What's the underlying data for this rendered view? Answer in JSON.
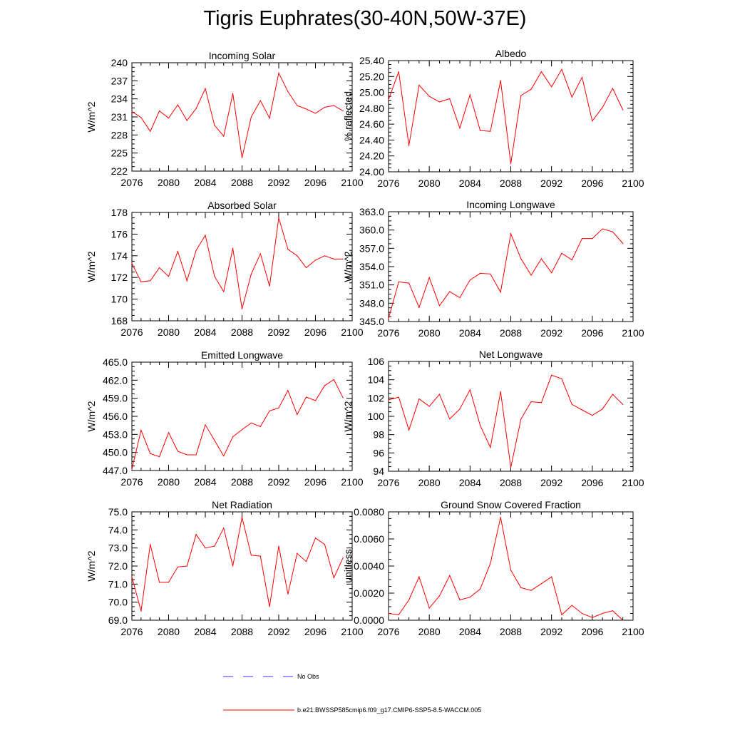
{
  "page_title": "Tigris Euphrates(30-40N,50W-37E)",
  "colors": {
    "model": "#ff0000",
    "obs": "#3333ff",
    "axis": "#000000"
  },
  "legend": {
    "obs_label": "No Obs",
    "model_label": "b.e21.BWSSP585cmip6.f09_g17.CMIP6-SSP5-8.5-WACCM.005"
  },
  "chart_data": [
    {
      "type": "line",
      "title": "Incoming Solar",
      "ylabel": "W/m^2",
      "ylim": [
        222,
        240
      ],
      "yticks": [
        222,
        225,
        228,
        231,
        234,
        237,
        240
      ],
      "ytick_labels": [
        "222",
        "225",
        "228",
        "231",
        "234",
        "237",
        "240"
      ],
      "xlim": [
        2076,
        2100
      ],
      "xticks": [
        2076,
        2080,
        2084,
        2088,
        2092,
        2096,
        2100
      ],
      "x": [
        2076,
        2077,
        2078,
        2079,
        2080,
        2081,
        2082,
        2083,
        2084,
        2085,
        2086,
        2087,
        2088,
        2089,
        2090,
        2091,
        2092,
        2093,
        2094,
        2095,
        2096,
        2097,
        2098,
        2099
      ],
      "series": [
        {
          "values": [
            231.9,
            230.9,
            228.6,
            232.0,
            230.8,
            233.0,
            230.4,
            232.4,
            235.7,
            229.6,
            227.8,
            234.9,
            224.2,
            231.0,
            233.7,
            230.8,
            238.3,
            235.2,
            232.9,
            232.3,
            231.6,
            232.6,
            232.9,
            232.0
          ]
        }
      ]
    },
    {
      "type": "line",
      "title": "Albedo",
      "ylabel": "% reflected",
      "ylim": [
        24.0,
        25.4
      ],
      "yticks": [
        24.0,
        24.2,
        24.4,
        24.6,
        24.8,
        25.0,
        25.2,
        25.4
      ],
      "ytick_labels": [
        "24.00",
        "24.20",
        "24.40",
        "24.60",
        "24.80",
        "25.00",
        "25.20",
        "25.40"
      ],
      "xlim": [
        2076,
        2100
      ],
      "xticks": [
        2076,
        2080,
        2084,
        2088,
        2092,
        2096,
        2100
      ],
      "x": [
        2076,
        2077,
        2078,
        2079,
        2080,
        2081,
        2082,
        2083,
        2084,
        2085,
        2086,
        2087,
        2088,
        2089,
        2090,
        2091,
        2092,
        2093,
        2094,
        2095,
        2096,
        2097,
        2098,
        2099
      ],
      "series": [
        {
          "values": [
            24.91,
            25.26,
            24.33,
            25.09,
            24.95,
            24.88,
            24.92,
            24.55,
            24.97,
            24.52,
            24.51,
            25.15,
            24.1,
            24.96,
            25.04,
            25.26,
            25.07,
            25.29,
            24.94,
            25.19,
            24.64,
            24.81,
            25.05,
            24.78
          ]
        }
      ]
    },
    {
      "type": "line",
      "title": "Absorbed Solar",
      "ylabel": "W/m^2",
      "ylim": [
        168,
        178
      ],
      "yticks": [
        168,
        170,
        172,
        174,
        176,
        178
      ],
      "ytick_labels": [
        "168",
        "170",
        "172",
        "174",
        "176",
        "178"
      ],
      "xlim": [
        2076,
        2100
      ],
      "xticks": [
        2076,
        2080,
        2084,
        2088,
        2092,
        2096,
        2100
      ],
      "x": [
        2076,
        2077,
        2078,
        2079,
        2080,
        2081,
        2082,
        2083,
        2084,
        2085,
        2086,
        2087,
        2088,
        2089,
        2090,
        2091,
        2092,
        2093,
        2094,
        2095,
        2096,
        2097,
        2098,
        2099
      ],
      "series": [
        {
          "values": [
            173.3,
            171.6,
            171.7,
            172.9,
            172.1,
            174.4,
            171.7,
            174.5,
            175.9,
            172.1,
            170.7,
            174.7,
            169.1,
            172.3,
            174.2,
            171.2,
            177.5,
            174.6,
            174.0,
            172.9,
            173.6,
            174.0,
            173.7,
            173.7
          ]
        }
      ]
    },
    {
      "type": "line",
      "title": "Incoming Longwave",
      "ylabel": "W/m^2",
      "ylim": [
        345.0,
        363.0
      ],
      "yticks": [
        345,
        348,
        351,
        354,
        357,
        360,
        363
      ],
      "ytick_labels": [
        "345.0",
        "348.0",
        "351.0",
        "354.0",
        "357.0",
        "360.0",
        "363.0"
      ],
      "xlim": [
        2076,
        2100
      ],
      "xticks": [
        2076,
        2080,
        2084,
        2088,
        2092,
        2096,
        2100
      ],
      "x": [
        2076,
        2077,
        2078,
        2079,
        2080,
        2081,
        2082,
        2083,
        2084,
        2085,
        2086,
        2087,
        2088,
        2089,
        2090,
        2091,
        2092,
        2093,
        2094,
        2095,
        2096,
        2097,
        2098,
        2099
      ],
      "series": [
        {
          "values": [
            345.5,
            351.5,
            351.3,
            347.3,
            352.2,
            347.6,
            349.9,
            348.9,
            351.8,
            352.9,
            352.8,
            349.8,
            359.4,
            355.3,
            352.6,
            355.3,
            353.0,
            356.2,
            355.1,
            358.6,
            358.6,
            360.2,
            359.7,
            357.8
          ]
        }
      ]
    },
    {
      "type": "line",
      "title": "Emitted Longwave",
      "ylabel": "W/m^2",
      "ylim": [
        447.0,
        465.0
      ],
      "yticks": [
        447,
        450,
        453,
        456,
        459,
        462,
        465
      ],
      "ytick_labels": [
        "447.0",
        "450.0",
        "453.0",
        "456.0",
        "459.0",
        "462.0",
        "465.0"
      ],
      "xlim": [
        2076,
        2100
      ],
      "xticks": [
        2076,
        2080,
        2084,
        2088,
        2092,
        2096,
        2100
      ],
      "x": [
        2076,
        2077,
        2078,
        2079,
        2080,
        2081,
        2082,
        2083,
        2084,
        2085,
        2086,
        2087,
        2088,
        2089,
        2090,
        2091,
        2092,
        2093,
        2094,
        2095,
        2096,
        2097,
        2098,
        2099
      ],
      "series": [
        {
          "values": [
            447.2,
            453.7,
            449.8,
            449.3,
            453.3,
            450.2,
            449.6,
            449.6,
            454.6,
            452.0,
            449.4,
            452.6,
            453.8,
            454.9,
            454.3,
            456.9,
            457.4,
            460.3,
            456.3,
            459.2,
            458.6,
            461.1,
            462.1,
            459.1
          ]
        }
      ]
    },
    {
      "type": "line",
      "title": "Net Longwave",
      "ylabel": "W/m^2",
      "ylim": [
        94,
        106
      ],
      "yticks": [
        94,
        96,
        98,
        100,
        102,
        104,
        106
      ],
      "ytick_labels": [
        "94",
        "96",
        "98",
        "100",
        "102",
        "104",
        "106"
      ],
      "xlim": [
        2076,
        2100
      ],
      "xticks": [
        2076,
        2080,
        2084,
        2088,
        2092,
        2096,
        2100
      ],
      "x": [
        2076,
        2077,
        2078,
        2079,
        2080,
        2081,
        2082,
        2083,
        2084,
        2085,
        2086,
        2087,
        2088,
        2089,
        2090,
        2091,
        2092,
        2093,
        2094,
        2095,
        2096,
        2097,
        2098,
        2099
      ],
      "series": [
        {
          "values": [
            101.8,
            102.1,
            98.5,
            101.9,
            101.1,
            102.4,
            99.7,
            100.8,
            102.9,
            99.0,
            96.6,
            102.7,
            94.4,
            99.7,
            101.6,
            101.5,
            104.5,
            104.1,
            101.3,
            100.7,
            100.1,
            100.8,
            102.4,
            101.3
          ]
        }
      ]
    },
    {
      "type": "line",
      "title": "Net Radiation",
      "ylabel": "W/m^2",
      "ylim": [
        69.0,
        75.0
      ],
      "yticks": [
        69,
        70,
        71,
        72,
        73,
        74,
        75
      ],
      "ytick_labels": [
        "69.0",
        "70.0",
        "71.0",
        "72.0",
        "73.0",
        "74.0",
        "75.0"
      ],
      "xlim": [
        2076,
        2100
      ],
      "xticks": [
        2076,
        2080,
        2084,
        2088,
        2092,
        2096,
        2100
      ],
      "x": [
        2076,
        2077,
        2078,
        2079,
        2080,
        2081,
        2082,
        2083,
        2084,
        2085,
        2086,
        2087,
        2088,
        2089,
        2090,
        2091,
        2092,
        2093,
        2094,
        2095,
        2096,
        2097,
        2098,
        2099
      ],
      "series": [
        {
          "values": [
            71.4,
            69.5,
            73.2,
            71.1,
            71.1,
            71.95,
            72.0,
            73.75,
            73.0,
            73.1,
            74.1,
            72.0,
            74.7,
            72.6,
            72.55,
            69.75,
            73.1,
            70.45,
            72.7,
            72.25,
            73.55,
            73.2,
            71.35,
            72.45
          ]
        }
      ]
    },
    {
      "type": "line",
      "title": "Ground Snow Covered Fraction",
      "ylabel": "unitless",
      "ylim": [
        0.0,
        0.008
      ],
      "yticks": [
        0,
        0.002,
        0.004,
        0.006,
        0.008
      ],
      "ytick_labels": [
        "0.0000",
        "0.0020",
        "0.0040",
        "0.0060",
        "0.0080"
      ],
      "xlim": [
        2076,
        2100
      ],
      "xticks": [
        2076,
        2080,
        2084,
        2088,
        2092,
        2096,
        2100
      ],
      "x": [
        2076,
        2077,
        2078,
        2079,
        2080,
        2081,
        2082,
        2083,
        2084,
        2085,
        2086,
        2087,
        2088,
        2089,
        2090,
        2091,
        2092,
        2093,
        2094,
        2095,
        2096,
        2097,
        2098,
        2099
      ],
      "series": [
        {
          "values": [
            0.0005,
            0.0004,
            0.0015,
            0.0032,
            0.0009,
            0.0018,
            0.0033,
            0.0015,
            0.0017,
            0.0023,
            0.0042,
            0.0076,
            0.0037,
            0.0024,
            0.0022,
            0.0027,
            0.0032,
            0.0004,
            0.0011,
            0.0005,
            0.0002,
            0.0005,
            0.0007,
            0.0
          ]
        }
      ]
    }
  ]
}
